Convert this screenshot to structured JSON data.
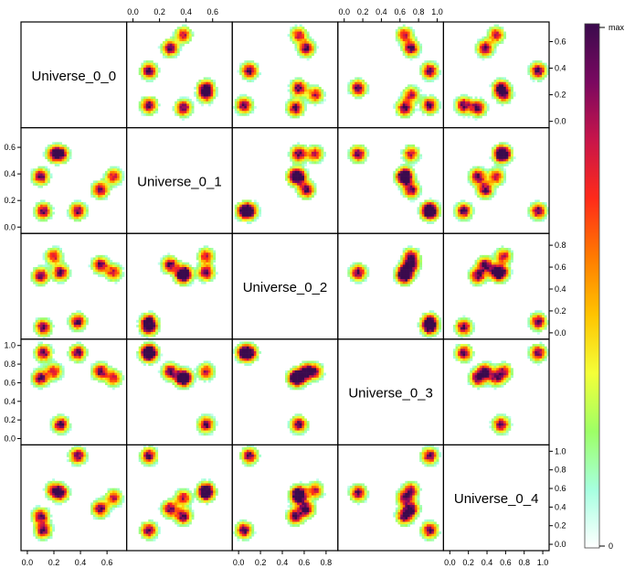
{
  "chart_data": {
    "type": "heatmap",
    "layout": "pairs-matrix",
    "variables": [
      "Universe_0_0",
      "Universe_0_1",
      "Universe_0_2",
      "Universe_0_3",
      "Universe_0_4"
    ],
    "axes": [
      {
        "var": "Universe_0_0",
        "range": [
          0,
          0.7
        ],
        "ticks": [
          "0.0",
          "0.2",
          "0.4",
          "0.6"
        ]
      },
      {
        "var": "Universe_0_1",
        "range": [
          0,
          0.7
        ],
        "ticks": [
          "0.0",
          "0.2",
          "0.4",
          "0.6"
        ]
      },
      {
        "var": "Universe_0_2",
        "range": [
          0,
          0.85
        ],
        "ticks": [
          "0.0",
          "0.2",
          "0.4",
          "0.6",
          "0.8"
        ]
      },
      {
        "var": "Universe_0_3",
        "range": [
          0,
          1.0
        ],
        "ticks": [
          "0.0",
          "0.2",
          "0.4",
          "0.6",
          "0.8",
          "1.0"
        ]
      },
      {
        "var": "Universe_0_4",
        "range": [
          0,
          1.0
        ],
        "ticks": [
          "0.0",
          "0.2",
          "0.4",
          "0.6",
          "0.8",
          "1.0"
        ]
      }
    ],
    "clusters": [
      {
        "u0": 0.25,
        "u1": 0.55,
        "u2": 0.55,
        "u3": 0.15,
        "u4": 0.55,
        "weight": 1.0
      },
      {
        "u0": 0.55,
        "u1": 0.28,
        "u2": 0.62,
        "u3": 0.72,
        "u4": 0.38,
        "weight": 1.0
      },
      {
        "u0": 0.1,
        "u1": 0.38,
        "u2": 0.52,
        "u3": 0.65,
        "u4": 0.3,
        "weight": 1.0
      },
      {
        "u0": 0.38,
        "u1": 0.12,
        "u2": 0.1,
        "u3": 0.92,
        "u4": 0.95,
        "weight": 1.0
      },
      {
        "u0": 0.12,
        "u1": 0.12,
        "u2": 0.05,
        "u3": 0.92,
        "u4": 0.15,
        "weight": 1.0
      },
      {
        "u0": 0.65,
        "u1": 0.38,
        "u2": 0.55,
        "u3": 0.65,
        "u4": 0.5,
        "weight": 0.8
      },
      {
        "u0": 0.2,
        "u1": 0.55,
        "u2": 0.7,
        "u3": 0.72,
        "u4": 0.58,
        "weight": 0.8
      }
    ],
    "colorbar": {
      "labels": {
        "top": "max",
        "bottom": "0"
      },
      "stops": [
        "#3a0a4d",
        "#7a0860",
        "#c8154a",
        "#ff2a1a",
        "#ff7a00",
        "#ffc400",
        "#f4ff38",
        "#9dff66",
        "#a6ffe0",
        "#ffffff"
      ]
    },
    "grid": false,
    "legend": "colorbar-right"
  }
}
